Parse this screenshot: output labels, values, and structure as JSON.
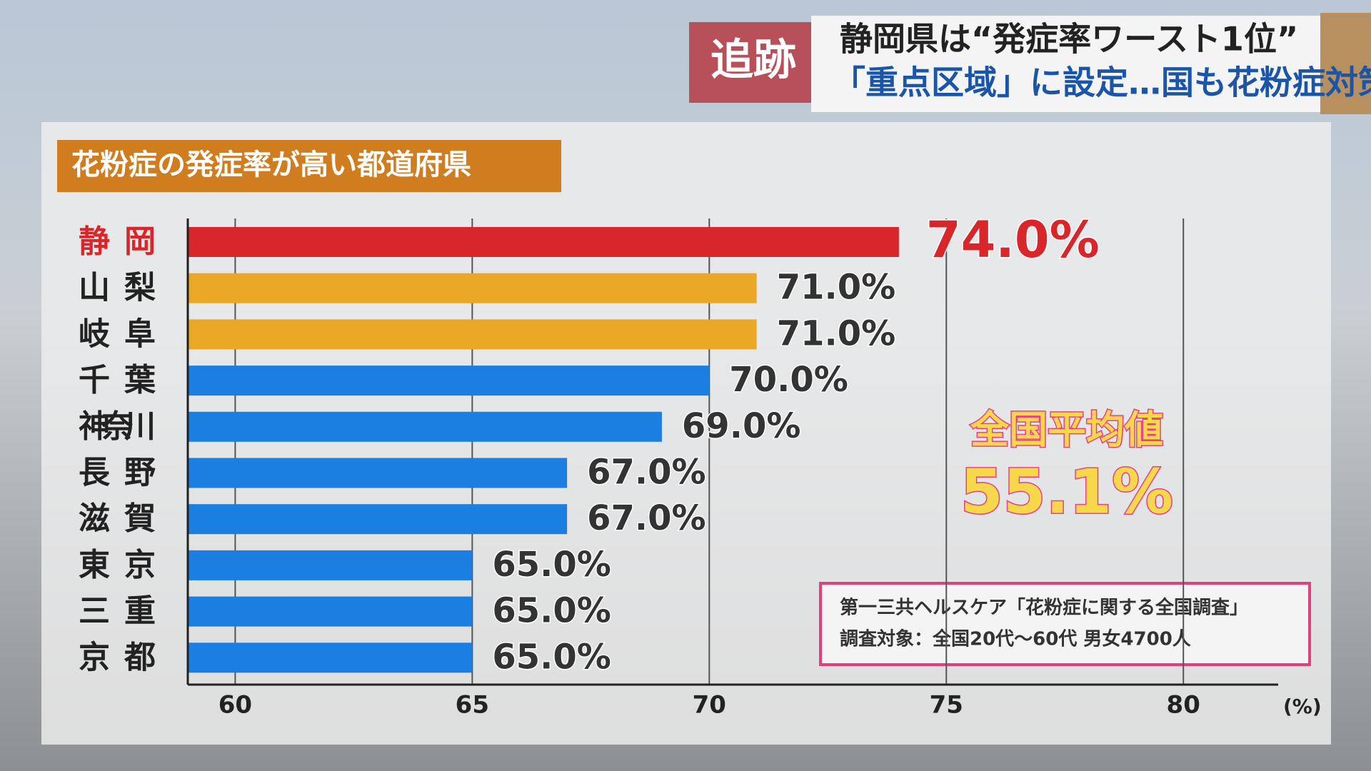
{
  "header": {
    "tag": "追跡",
    "headline": "静岡県は“発症率ワースト1位”",
    "subheadline": "「重点区域」に設定…国も花粉症対策"
  },
  "chart_data": {
    "type": "bar",
    "orientation": "horizontal",
    "title": "花粉症の発症率が高い都道府県",
    "categories": [
      "静岡",
      "山梨",
      "岐阜",
      "千葉",
      "神奈川",
      "長野",
      "滋賀",
      "東京",
      "三重",
      "京都"
    ],
    "values": [
      74.0,
      71.0,
      71.0,
      70.0,
      69.0,
      67.0,
      67.0,
      65.0,
      65.0,
      65.0
    ],
    "value_labels": [
      "74.0%",
      "71.0%",
      "71.0%",
      "70.0%",
      "69.0%",
      "67.0%",
      "67.0%",
      "65.0%",
      "65.0%",
      "65.0%"
    ],
    "colors": [
      "#d9262a",
      "#eaa825",
      "#eaa825",
      "#1a7fe0",
      "#1a7fe0",
      "#1a7fe0",
      "#1a7fe0",
      "#1a7fe0",
      "#1a7fe0",
      "#1a7fe0"
    ],
    "label_colors": [
      "#d9262a",
      "#222222",
      "#222222",
      "#222222",
      "#222222",
      "#222222",
      "#222222",
      "#222222",
      "#222222",
      "#222222"
    ],
    "xlim": [
      59,
      82
    ],
    "xticks": [
      60,
      65,
      70,
      75,
      80
    ],
    "x_unit": "(%)",
    "grid": true,
    "annotations": [
      "全国平均値",
      "55.1%"
    ],
    "source": [
      "第一三共ヘルスケア「花粉症に関する全国調査」",
      "調査対象：全国20代〜60代 男女4700人"
    ]
  }
}
